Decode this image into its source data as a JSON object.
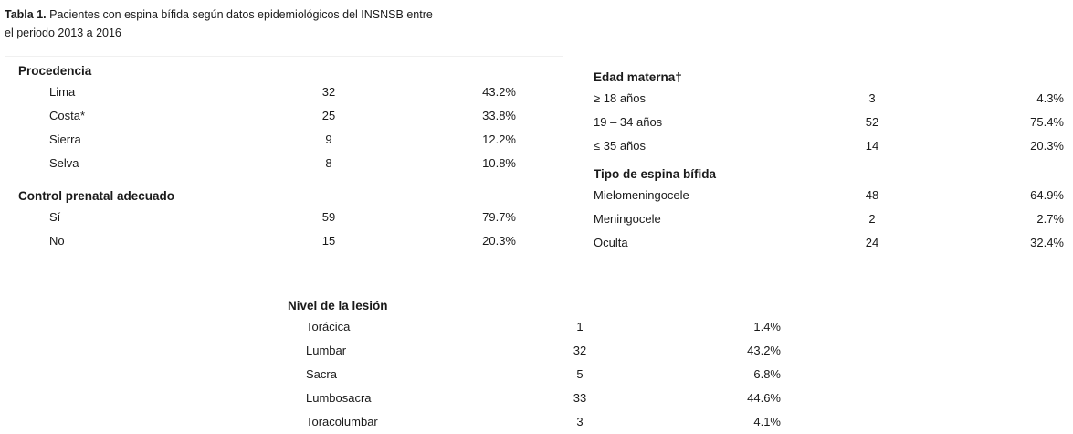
{
  "caption": {
    "label": "Tabla 1.",
    "text": "Pacientes con espina bífida según datos epidemiológicos del INSNSB entre",
    "text2": "el periodo 2013 a 2016"
  },
  "procedencia": {
    "title": "Procedencia",
    "rows": [
      {
        "label": "Lima",
        "n": "32",
        "pct": "43.2%"
      },
      {
        "label": "Costa*",
        "n": "25",
        "pct": "33.8%"
      },
      {
        "label": "Sierra",
        "n": "9",
        "pct": "12.2%"
      },
      {
        "label": "Selva",
        "n": "8",
        "pct": "10.8%"
      }
    ]
  },
  "control": {
    "title": "Control prenatal adecuado",
    "rows": [
      {
        "label": "Sí",
        "n": "59",
        "pct": "79.7%"
      },
      {
        "label": "No",
        "n": "15",
        "pct": "20.3%"
      }
    ]
  },
  "edad": {
    "title": "Edad materna†",
    "rows": [
      {
        "label": "≥ 18 años",
        "n": "3",
        "pct": "4.3%"
      },
      {
        "label": "19 – 34 años",
        "n": "52",
        "pct": "75.4%"
      },
      {
        "label": "≤ 35 años",
        "n": "14",
        "pct": "20.3%"
      }
    ]
  },
  "tipo": {
    "title": "Tipo de espina bífida",
    "rows": [
      {
        "label": "Mielomeningocele",
        "n": "48",
        "pct": "64.9%"
      },
      {
        "label": "Meningocele",
        "n": "2",
        "pct": "2.7%"
      },
      {
        "label": "Oculta",
        "n": "24",
        "pct": "32.4%"
      }
    ]
  },
  "nivel": {
    "title": "Nivel de la lesión",
    "rows": [
      {
        "label": "Torácica",
        "n": "1",
        "pct": "1.4%"
      },
      {
        "label": "Lumbar",
        "n": "32",
        "pct": "43.2%"
      },
      {
        "label": "Sacra",
        "n": "5",
        "pct": "6.8%"
      },
      {
        "label": "Lumbosacra",
        "n": "33",
        "pct": "44.6%"
      },
      {
        "label": "Toracolumbar",
        "n": "3",
        "pct": "4.1%"
      }
    ]
  }
}
